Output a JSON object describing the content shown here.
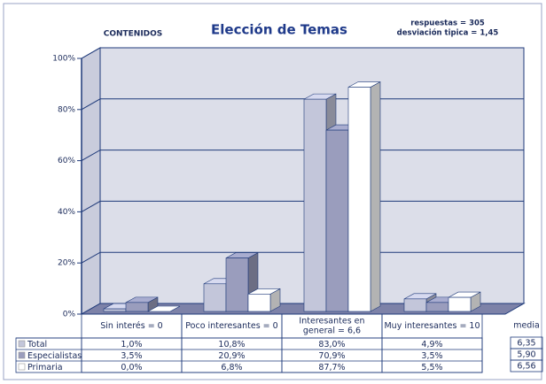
{
  "chart_data": {
    "type": "bar3d",
    "title": "Elección de Temas",
    "subtitle": "CONTENIDOS",
    "annotations": [
      "respuestas = 305",
      "desviación tipica = 1,45"
    ],
    "categories": [
      [
        "Sin interés = 0"
      ],
      [
        "Poco interesantes = 0"
      ],
      [
        "Interesantes en",
        "general = 6,6"
      ],
      [
        "Muy interesantes = 10"
      ]
    ],
    "series": [
      {
        "name": "Total",
        "color": "#c3c6da",
        "values": [
          1.0,
          10.8,
          83.0,
          4.9
        ],
        "value_labels": [
          "1,0%",
          "10,8%",
          "83,0%",
          "4,9%"
        ]
      },
      {
        "name": "Especialistas",
        "color": "#9a9dbd",
        "values": [
          3.5,
          20.9,
          70.9,
          3.5
        ],
        "value_labels": [
          "3,5%",
          "20,9%",
          "70,9%",
          "3,5%"
        ]
      },
      {
        "name": "Primaria",
        "color": "#ffffff",
        "values": [
          0.0,
          6.8,
          87.7,
          5.5
        ],
        "value_labels": [
          "0,0%",
          "6,8%",
          "87,7%",
          "5,5%"
        ]
      }
    ],
    "ylim": [
      0,
      100
    ],
    "yticks": [
      {
        "value": 0,
        "label": "0%"
      },
      {
        "value": 20,
        "label": "20%"
      },
      {
        "value": 40,
        "label": "40%"
      },
      {
        "value": 60,
        "label": "60%"
      },
      {
        "value": 80,
        "label": "80%"
      },
      {
        "value": 100,
        "label": "100%"
      }
    ],
    "grid": true,
    "media_header": "media",
    "media": [
      "6,35",
      "5,90",
      "6,56"
    ]
  }
}
